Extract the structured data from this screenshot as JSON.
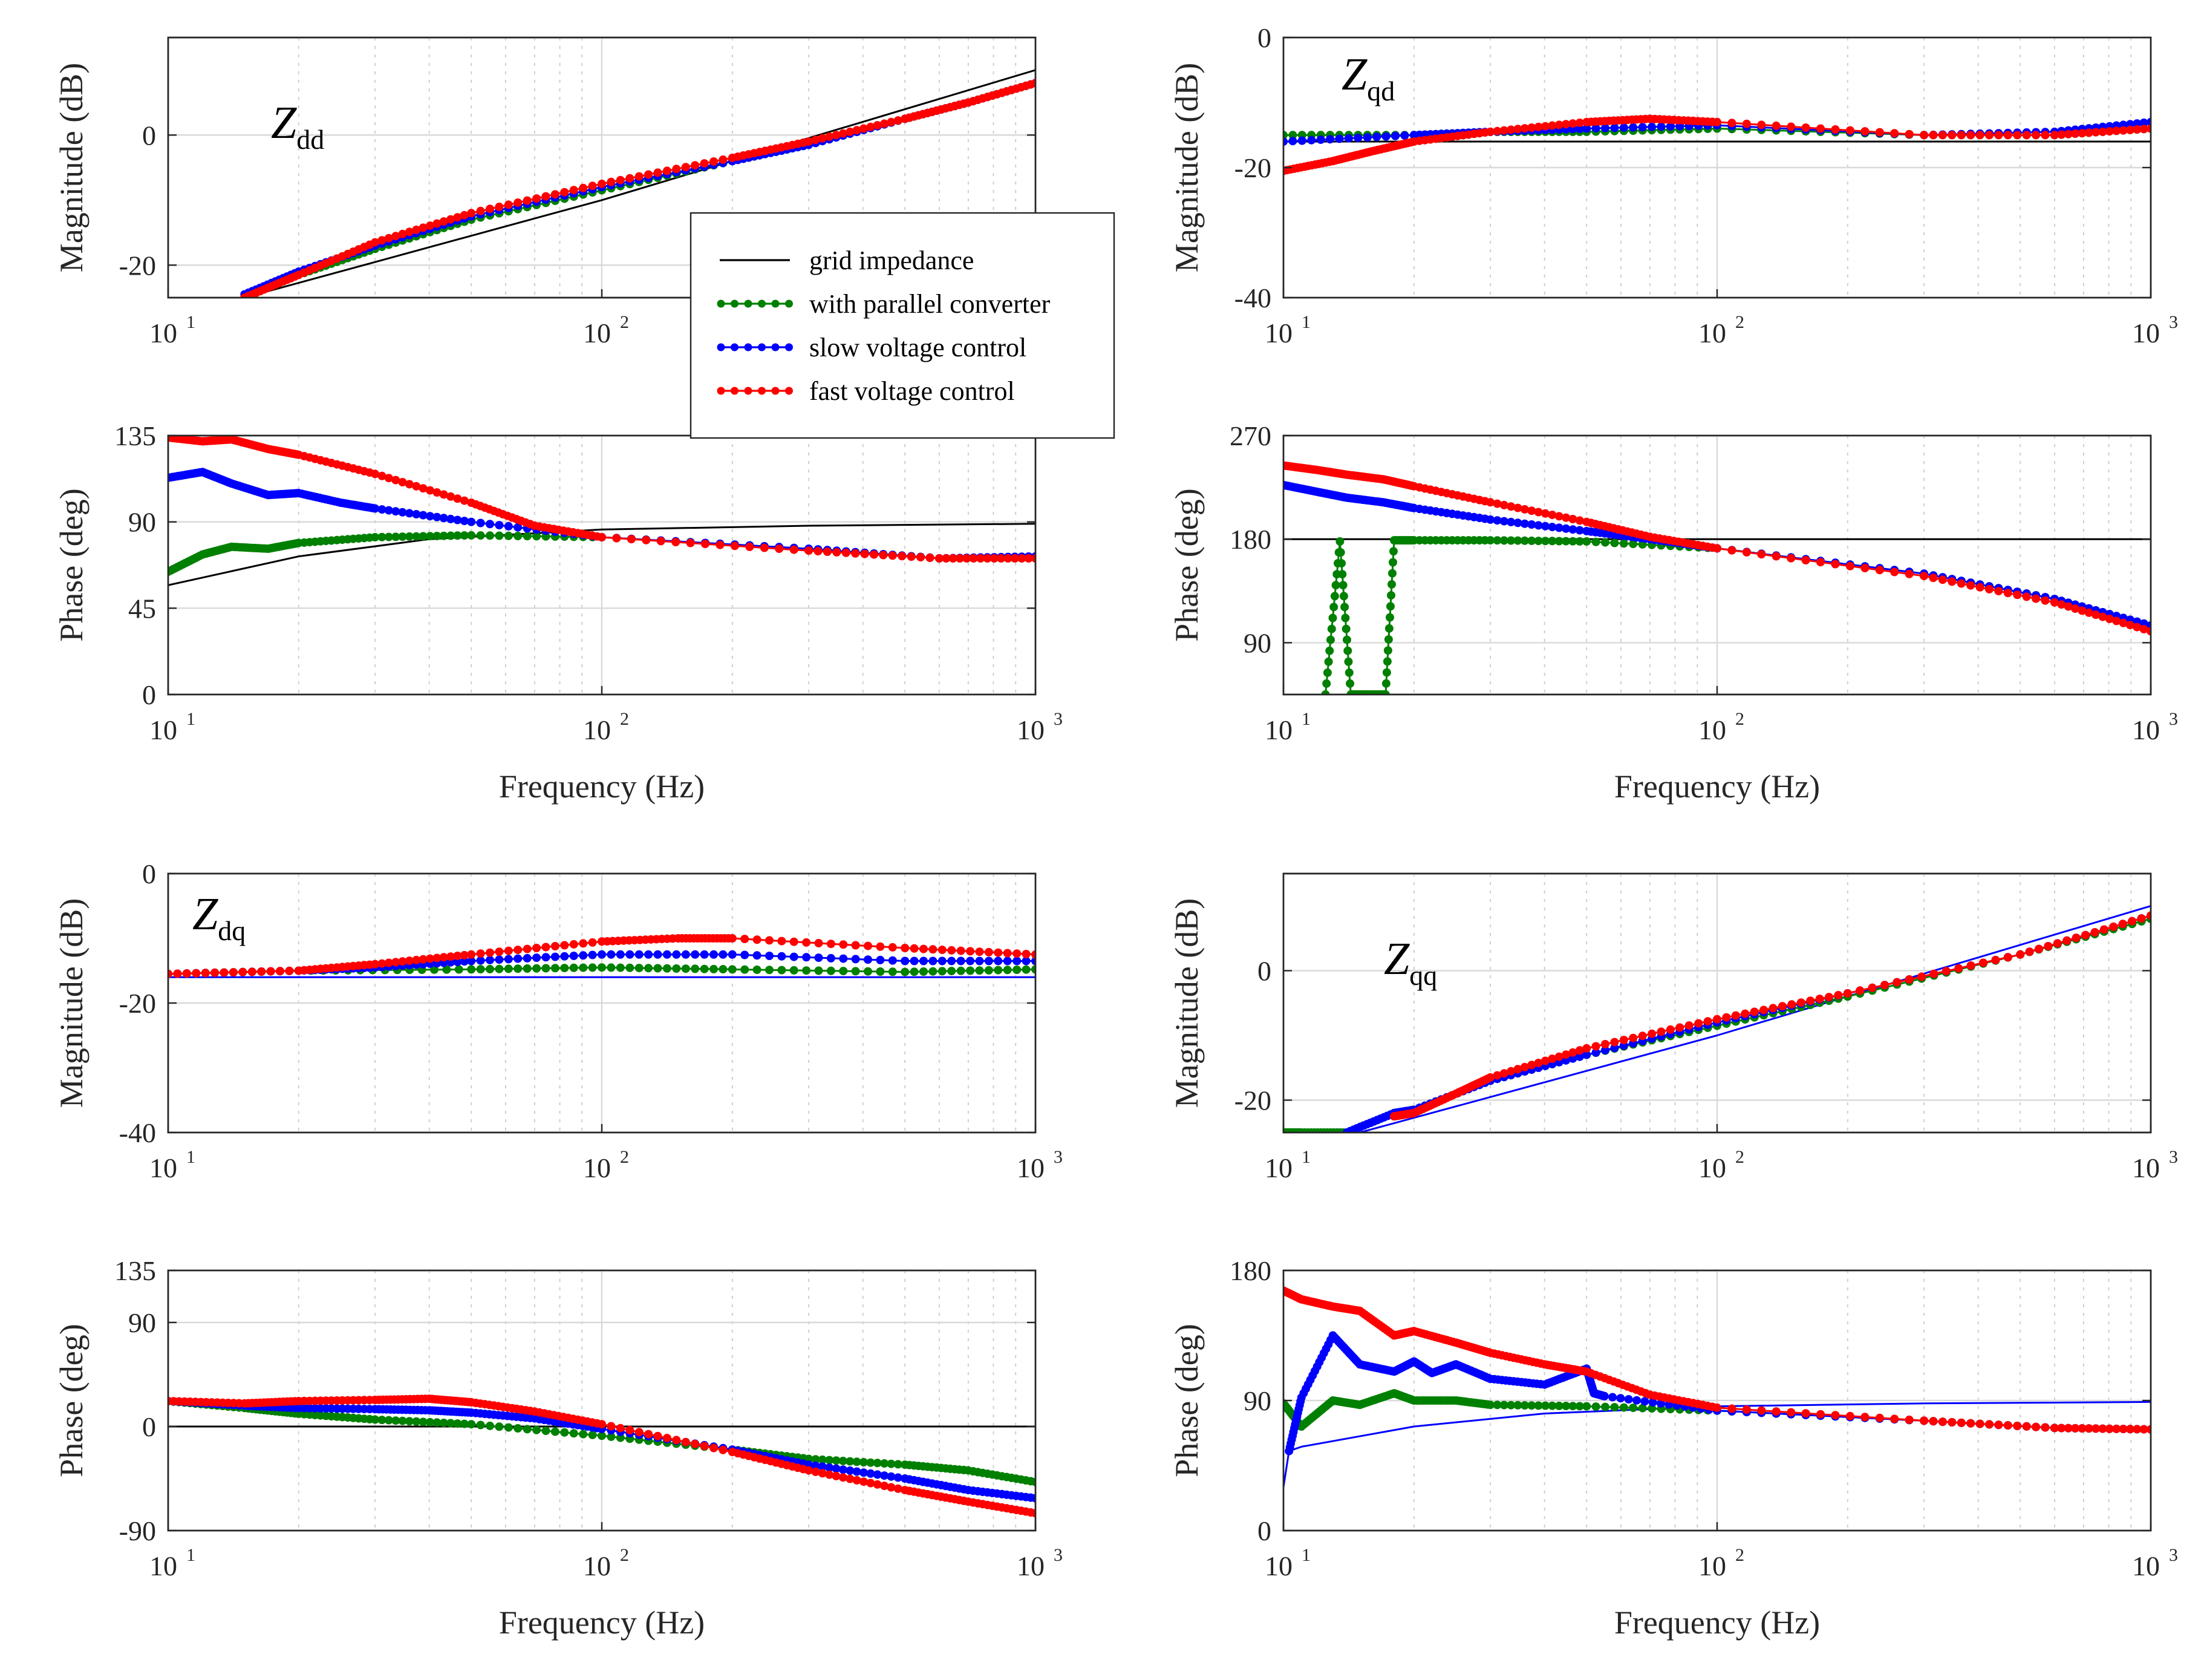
{
  "chart_data": [
    {
      "id": "zdd-mag",
      "type": "line",
      "title_main": "Z",
      "title_sub": "dd",
      "xlabel": "",
      "ylabel": "Magnitude (dB)",
      "xscale": "log",
      "xlim": [
        10,
        1000
      ],
      "ylim": [
        -25,
        15
      ],
      "yticks": [
        -20,
        0
      ],
      "grid": true,
      "series": [
        {
          "name": "grid impedance",
          "color": "#000000",
          "markers": false,
          "x": [
            15,
            100,
            1000
          ],
          "y": [
            -25,
            -10,
            10
          ]
        },
        {
          "name": "with parallel converter",
          "color": "#008000",
          "markers": true,
          "x": [
            15,
            20,
            30,
            50,
            100,
            200,
            300,
            500,
            700,
            1000
          ],
          "y": [
            -25,
            -21.5,
            -17.5,
            -13,
            -8.5,
            -4,
            -1.5,
            2.5,
            5,
            8
          ]
        },
        {
          "name": "slow voltage control",
          "color": "#0000ff",
          "markers": true,
          "x": [
            15,
            20,
            30,
            50,
            100,
            200,
            300,
            500,
            700,
            1000
          ],
          "y": [
            -24.5,
            -21,
            -17,
            -12.5,
            -8,
            -4,
            -1.5,
            2.5,
            5,
            8
          ]
        },
        {
          "name": "fast voltage control",
          "color": "#ff0000",
          "markers": true,
          "x": [
            15,
            20,
            30,
            50,
            100,
            200,
            300,
            500,
            700,
            1000
          ],
          "y": [
            -25,
            -21.5,
            -16.5,
            -12,
            -7.5,
            -3.5,
            -1,
            2.5,
            5,
            8
          ]
        }
      ]
    },
    {
      "id": "zdd-phase",
      "type": "line",
      "xlabel": "Frequency (Hz)",
      "ylabel": "Phase (deg)",
      "xscale": "log",
      "xlim": [
        10,
        1000
      ],
      "ylim": [
        0,
        135
      ],
      "yticks": [
        0,
        45,
        90,
        135
      ],
      "grid": true,
      "series": [
        {
          "name": "grid impedance",
          "color": "#000000",
          "markers": false,
          "x": [
            10,
            20,
            40,
            100,
            300,
            1000
          ],
          "y": [
            57,
            72,
            81,
            86,
            88,
            89
          ]
        },
        {
          "name": "with parallel converter",
          "color": "#008000",
          "markers": true,
          "x": [
            10,
            12,
            14,
            17,
            20,
            30,
            50,
            100,
            300,
            600,
            1000
          ],
          "y": [
            64,
            73,
            77,
            76,
            79,
            82,
            83,
            82,
            76,
            71,
            71
          ]
        },
        {
          "name": "slow voltage control",
          "color": "#0000ff",
          "markers": true,
          "x": [
            10,
            12,
            14,
            17,
            20,
            25,
            30,
            50,
            100,
            300,
            600,
            1000
          ],
          "y": [
            113,
            116,
            110,
            104,
            105,
            100,
            97,
            90,
            82,
            76,
            71,
            72
          ]
        },
        {
          "name": "fast voltage control",
          "color": "#ff0000",
          "markers": true,
          "x": [
            10,
            12,
            14,
            17,
            20,
            30,
            50,
            70,
            100,
            300,
            600,
            1000
          ],
          "y": [
            134,
            132,
            133,
            128,
            125,
            115,
            100,
            88,
            82,
            75,
            71,
            71
          ]
        }
      ]
    },
    {
      "id": "zqd-mag",
      "type": "line",
      "title_main": "Z",
      "title_sub": "qd",
      "xlabel": "",
      "ylabel": "Magnitude (dB)",
      "xscale": "log",
      "xlim": [
        10,
        1000
      ],
      "ylim": [
        -40,
        0
      ],
      "yticks": [
        -40,
        -20,
        0
      ],
      "grid": true,
      "series": [
        {
          "name": "grid impedance",
          "color": "#000000",
          "markers": false,
          "x": [
            10,
            1000
          ],
          "y": [
            -16,
            -16
          ]
        },
        {
          "name": "with parallel converter",
          "color": "#008000",
          "markers": true,
          "x": [
            10,
            20,
            30,
            50,
            100,
            300,
            600,
            1000
          ],
          "y": [
            -15,
            -15,
            -14.5,
            -14.5,
            -14,
            -15,
            -15,
            -14
          ]
        },
        {
          "name": "slow voltage control",
          "color": "#0000ff",
          "markers": true,
          "x": [
            10,
            20,
            30,
            50,
            100,
            300,
            600,
            1000
          ],
          "y": [
            -16,
            -15,
            -14.5,
            -14,
            -13.5,
            -15,
            -14.5,
            -13
          ]
        },
        {
          "name": "fast voltage control",
          "color": "#ff0000",
          "markers": true,
          "x": [
            10,
            13,
            16,
            20,
            30,
            50,
            70,
            100,
            300,
            600,
            1000
          ],
          "y": [
            -20.5,
            -19,
            -17.5,
            -16,
            -14.5,
            -13,
            -12.5,
            -13,
            -15,
            -15,
            -14
          ]
        }
      ]
    },
    {
      "id": "zqd-phase",
      "type": "line",
      "xlabel": "Frequency (Hz)",
      "ylabel": "Phase (deg)",
      "xscale": "log",
      "xlim": [
        10,
        1000
      ],
      "ylim": [
        45,
        270
      ],
      "yticks": [
        90,
        180,
        270
      ],
      "grid": true,
      "series": [
        {
          "name": "grid impedance",
          "color": "#000000",
          "markers": false,
          "x": [
            10,
            1000
          ],
          "y": [
            180,
            180
          ]
        },
        {
          "name": "with parallel converter",
          "color": "#008000",
          "markers": true,
          "x": [
            12.5,
            13.5,
            14.3,
            15.5,
            17.2,
            18,
            20,
            30,
            50,
            100,
            300,
            600,
            1000
          ],
          "y": [
            45,
            178,
            45,
            45,
            45,
            179,
            179,
            179,
            178,
            172,
            150,
            128,
            105
          ]
        },
        {
          "name": "slow voltage control",
          "color": "#0000ff",
          "markers": true,
          "x": [
            10,
            12,
            14,
            17,
            20,
            30,
            50,
            70,
            100,
            300,
            600,
            1000
          ],
          "y": [
            227,
            221,
            216,
            212,
            207,
            197,
            187,
            180,
            172,
            150,
            128,
            105
          ]
        },
        {
          "name": "fast voltage control",
          "color": "#ff0000",
          "markers": true,
          "x": [
            10,
            12,
            14,
            17,
            20,
            30,
            50,
            70,
            100,
            300,
            600,
            1000
          ],
          "y": [
            244,
            240,
            236,
            232,
            226,
            212,
            195,
            182,
            172,
            148,
            125,
            100
          ]
        }
      ]
    },
    {
      "id": "zdq-mag",
      "type": "line",
      "title_main": "Z",
      "title_sub": "dq",
      "xlabel": "",
      "ylabel": "Magnitude (dB)",
      "xscale": "log",
      "xlim": [
        10,
        1000
      ],
      "ylim": [
        -40,
        0
      ],
      "yticks": [
        -40,
        -20,
        0
      ],
      "grid": true,
      "series": [
        {
          "name": "grid impedance",
          "color": "#0000ff",
          "markers": false,
          "x": [
            10,
            1000
          ],
          "y": [
            -16,
            -16
          ]
        },
        {
          "name": "with parallel converter",
          "color": "#008000",
          "markers": true,
          "x": [
            10,
            20,
            50,
            100,
            200,
            500,
            1000
          ],
          "y": [
            -15.5,
            -15,
            -14.8,
            -14.5,
            -14.8,
            -15.2,
            -14.8
          ]
        },
        {
          "name": "slow voltage control",
          "color": "#0000ff",
          "markers": true,
          "x": [
            10,
            20,
            30,
            50,
            100,
            200,
            500,
            1000
          ],
          "y": [
            -15.5,
            -15,
            -14.5,
            -13.5,
            -12.5,
            -12.5,
            -13.5,
            -13.5
          ]
        },
        {
          "name": "fast voltage control",
          "color": "#ff0000",
          "markers": true,
          "x": [
            10,
            20,
            30,
            50,
            100,
            150,
            200,
            500,
            1000
          ],
          "y": [
            -15.5,
            -15,
            -14,
            -12.5,
            -10.5,
            -10,
            -10,
            -11.5,
            -12.5
          ]
        }
      ]
    },
    {
      "id": "zdq-phase",
      "type": "line",
      "xlabel": "Frequency (Hz)",
      "ylabel": "Phase (deg)",
      "xscale": "log",
      "xlim": [
        10,
        1000
      ],
      "ylim": [
        -90,
        135
      ],
      "yticks": [
        -90,
        0,
        90,
        135
      ],
      "grid": true,
      "series": [
        {
          "name": "grid impedance",
          "color": "#000000",
          "markers": false,
          "x": [
            10,
            1000
          ],
          "y": [
            0,
            0
          ]
        },
        {
          "name": "with parallel converter",
          "color": "#008000",
          "markers": true,
          "x": [
            10,
            15,
            20,
            30,
            50,
            100,
            200,
            300,
            500,
            700,
            1000
          ],
          "y": [
            22,
            16,
            11,
            6,
            2,
            -8,
            -20,
            -28,
            -33,
            -38,
            -48
          ]
        },
        {
          "name": "slow voltage control",
          "color": "#0000ff",
          "markers": true,
          "x": [
            10,
            15,
            20,
            30,
            40,
            50,
            70,
            100,
            200,
            300,
            500,
            700,
            1000
          ],
          "y": [
            22,
            18,
            16,
            15,
            14,
            12,
            7,
            -2,
            -20,
            -33,
            -45,
            -55,
            -62
          ]
        },
        {
          "name": "fast voltage control",
          "color": "#ff0000",
          "markers": true,
          "x": [
            10,
            15,
            20,
            30,
            40,
            50,
            70,
            100,
            200,
            300,
            500,
            700,
            1000
          ],
          "y": [
            22,
            20,
            22,
            23,
            24,
            21,
            13,
            2,
            -22,
            -38,
            -55,
            -65,
            -75
          ]
        }
      ]
    },
    {
      "id": "zqq-mag",
      "type": "line",
      "title_main": "Z",
      "title_sub": "qq",
      "xlabel": "",
      "ylabel": "Magnitude (dB)",
      "xscale": "log",
      "xlim": [
        10,
        1000
      ],
      "ylim": [
        -25,
        15
      ],
      "yticks": [
        -20,
        0
      ],
      "grid": true,
      "series": [
        {
          "name": "grid impedance",
          "color": "#0000ff",
          "markers": false,
          "x": [
            15,
            100,
            1000
          ],
          "y": [
            -25,
            -10,
            10
          ]
        },
        {
          "name": "with parallel converter",
          "color": "#008000",
          "markers": true,
          "x": [
            10,
            11,
            14,
            18,
            20,
            30,
            50,
            100,
            200,
            500,
            1000
          ],
          "y": [
            -25,
            -25,
            -25,
            -22,
            -21.5,
            -17,
            -13,
            -8.5,
            -4,
            2.5,
            8
          ]
        },
        {
          "name": "slow voltage control",
          "color": "#0000ff",
          "markers": true,
          "x": [
            14,
            18,
            20,
            30,
            50,
            100,
            200,
            500,
            1000
          ],
          "y": [
            -25,
            -22,
            -21.5,
            -17,
            -13,
            -8,
            -3.5,
            2.5,
            8.5
          ]
        },
        {
          "name": "fast voltage control",
          "color": "#ff0000",
          "markers": true,
          "x": [
            18,
            20,
            25,
            30,
            50,
            100,
            200,
            500,
            1000
          ],
          "y": [
            -22.5,
            -22,
            -19,
            -16.5,
            -12,
            -7.5,
            -3.5,
            2.5,
            8.5
          ]
        }
      ]
    },
    {
      "id": "zqq-phase",
      "type": "line",
      "xlabel": "Frequency (Hz)",
      "ylabel": "Phase (deg)",
      "xscale": "log",
      "xlim": [
        10,
        1000
      ],
      "ylim": [
        0,
        180
      ],
      "yticks": [
        0,
        90,
        180
      ],
      "grid": true,
      "series": [
        {
          "name": "grid impedance",
          "color": "#0000ff",
          "markers": false,
          "x": [
            10,
            10.3,
            11,
            20,
            40,
            100,
            300,
            1000
          ],
          "y": [
            30,
            55,
            58,
            72,
            81,
            86,
            88,
            89
          ]
        },
        {
          "name": "with parallel converter",
          "color": "#008000",
          "markers": true,
          "x": [
            10,
            11,
            13,
            15,
            18,
            20,
            25,
            30,
            50,
            100,
            300,
            600,
            1000
          ],
          "y": [
            88,
            72,
            90,
            87,
            95,
            90,
            90,
            87,
            86,
            83,
            76,
            71,
            70
          ]
        },
        {
          "name": "slow voltage control",
          "color": "#0000ff",
          "markers": true,
          "x": [
            10.3,
            11,
            13,
            15,
            18,
            20,
            22,
            25,
            30,
            40,
            50,
            52,
            55,
            100,
            300,
            600,
            1000
          ],
          "y": [
            55,
            92,
            135,
            115,
            110,
            117,
            109,
            115,
            105,
            101,
            112,
            95,
            93,
            83,
            76,
            71,
            70
          ]
        },
        {
          "name": "fast voltage control",
          "color": "#ff0000",
          "markers": true,
          "x": [
            10,
            11,
            13,
            15,
            18,
            20,
            25,
            30,
            40,
            50,
            70,
            100,
            300,
            600,
            1000
          ],
          "y": [
            166,
            160,
            155,
            152,
            135,
            138,
            130,
            123,
            115,
            110,
            94,
            85,
            76,
            71,
            70
          ]
        }
      ]
    }
  ],
  "legend": {
    "entries": [
      {
        "label": "grid impedance",
        "color": "#000000",
        "markers": false
      },
      {
        "label": "with parallel converter",
        "color": "#008000",
        "markers": true
      },
      {
        "label": "slow voltage control",
        "color": "#0000ff",
        "markers": true
      },
      {
        "label": "fast voltage control",
        "color": "#ff0000",
        "markers": true
      }
    ]
  },
  "x_tick_labels": [
    {
      "base": "10",
      "exp": "1"
    },
    {
      "base": "10",
      "exp": "2"
    },
    {
      "base": "10",
      "exp": "3"
    }
  ]
}
